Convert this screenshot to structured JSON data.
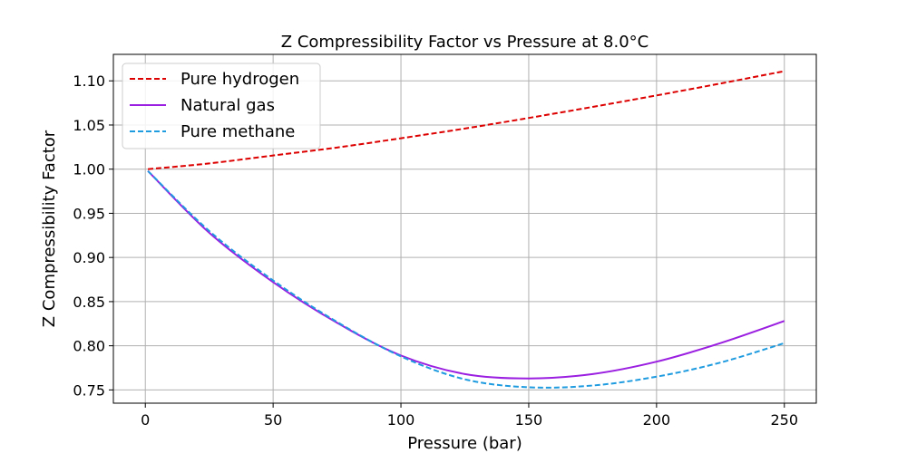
{
  "chart_data": {
    "type": "line",
    "title": "Z  Compressibility Factor vs Pressure at  8.0°C",
    "xlabel": "Pressure (bar)",
    "ylabel": "Z Compressibility Factor",
    "xlim": [
      -12.5,
      262.5
    ],
    "ylim": [
      0.735,
      1.13
    ],
    "xticks": [
      0,
      50,
      100,
      150,
      200,
      250
    ],
    "xtick_labels": [
      "0",
      "50",
      "100",
      "150",
      "200",
      "250"
    ],
    "yticks": [
      0.75,
      0.8,
      0.85,
      0.9,
      0.95,
      1.0,
      1.05,
      1.1
    ],
    "ytick_labels": [
      "0.75",
      "0.80",
      "0.85",
      "0.90",
      "0.95",
      "1.00",
      "1.05",
      "1.10"
    ],
    "grid": true,
    "legend_position": "top-left",
    "x": [
      1,
      25,
      50,
      75,
      100,
      125,
      150,
      175,
      200,
      225,
      250
    ],
    "series": [
      {
        "name": "Pure hydrogen",
        "color": "#dd0000",
        "dash": "dashed",
        "values": [
          1.0,
          1.0065,
          1.0155,
          1.0245,
          1.035,
          1.046,
          1.058,
          1.0705,
          1.0835,
          1.097,
          1.111
        ]
      },
      {
        "name": "Natural gas",
        "color": "#9b1fe0",
        "dash": "solid",
        "values": [
          0.998,
          0.928,
          0.872,
          0.826,
          0.789,
          0.768,
          0.763,
          0.768,
          0.782,
          0.803,
          0.828
        ]
      },
      {
        "name": "Pure methane",
        "color": "#1f9be0",
        "dash": "dashed",
        "values": [
          0.998,
          0.93,
          0.874,
          0.827,
          0.788,
          0.762,
          0.753,
          0.755,
          0.765,
          0.781,
          0.803
        ]
      }
    ]
  }
}
